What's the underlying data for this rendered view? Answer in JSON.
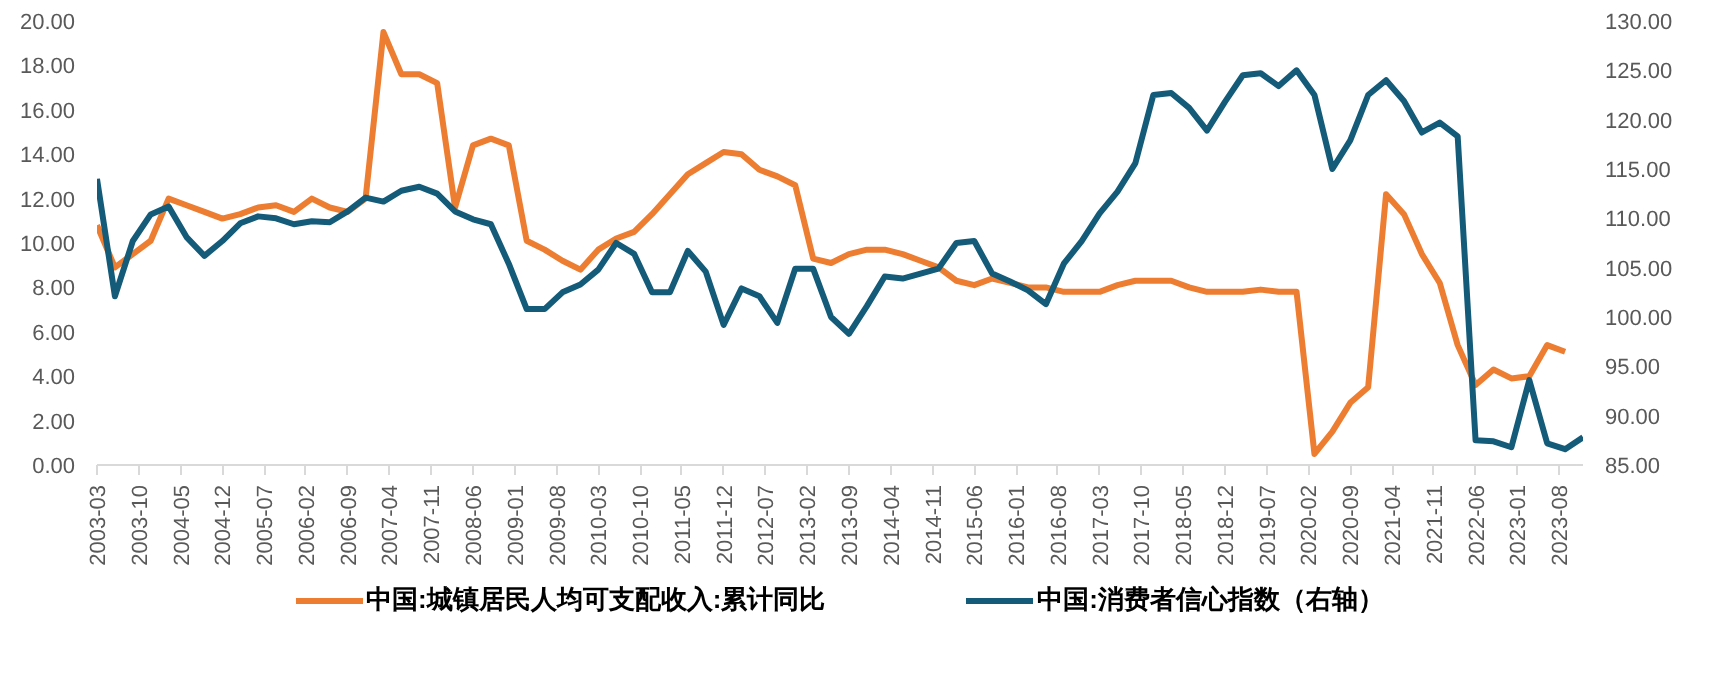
{
  "chart_data": {
    "type": "line",
    "x": [
      "2003-03",
      "2003-06",
      "2003-09",
      "2003-12",
      "2004-03",
      "2004-06",
      "2004-09",
      "2004-12",
      "2005-03",
      "2005-06",
      "2005-09",
      "2005-12",
      "2006-03",
      "2006-06",
      "2006-09",
      "2006-12",
      "2007-03",
      "2007-06",
      "2007-09",
      "2007-12",
      "2008-03",
      "2008-06",
      "2008-09",
      "2008-12",
      "2009-03",
      "2009-06",
      "2009-09",
      "2009-12",
      "2010-03",
      "2010-06",
      "2010-09",
      "2010-12",
      "2011-03",
      "2011-06",
      "2011-09",
      "2011-12",
      "2012-03",
      "2012-06",
      "2012-09",
      "2012-12",
      "2013-03",
      "2013-06",
      "2013-09",
      "2013-12",
      "2014-03",
      "2014-06",
      "2014-09",
      "2014-12",
      "2015-03",
      "2015-06",
      "2015-09",
      "2015-12",
      "2016-03",
      "2016-06",
      "2016-09",
      "2016-12",
      "2017-03",
      "2017-06",
      "2017-09",
      "2017-12",
      "2018-03",
      "2018-06",
      "2018-09",
      "2018-12",
      "2019-03",
      "2019-06",
      "2019-09",
      "2019-12",
      "2020-03",
      "2020-06",
      "2020-09",
      "2020-12",
      "2021-03",
      "2021-06",
      "2021-09",
      "2021-12",
      "2022-03",
      "2022-06",
      "2022-09",
      "2022-12",
      "2023-03",
      "2023-06",
      "2023-09",
      "2023-12"
    ],
    "series": [
      {
        "name": "中国:城镇居民人均可支配收入:累计同比",
        "color": "#ed7d31",
        "values": [
          10.8,
          8.9,
          9.5,
          10.1,
          12.0,
          11.7,
          11.4,
          11.1,
          11.3,
          11.6,
          11.7,
          11.4,
          12.0,
          11.6,
          11.4,
          12.0,
          19.5,
          17.6,
          17.6,
          17.2,
          11.6,
          14.4,
          14.7,
          14.4,
          10.1,
          9.7,
          9.2,
          8.8,
          9.7,
          10.2,
          10.5,
          11.3,
          12.2,
          13.1,
          13.6,
          14.1,
          14.0,
          13.3,
          13.0,
          12.6,
          9.3,
          9.1,
          9.5,
          9.7,
          9.7,
          9.5,
          9.2,
          8.9,
          8.3,
          8.1,
          8.4,
          8.2,
          8.0,
          8.0,
          7.8,
          7.8,
          7.8,
          8.1,
          8.3,
          8.3,
          8.3,
          8.0,
          7.8,
          7.8,
          7.8,
          7.9,
          7.8,
          7.8,
          0.5,
          1.5,
          2.8,
          3.5,
          12.2,
          11.3,
          9.5,
          8.2,
          5.4,
          3.6,
          4.3,
          3.9,
          4.0,
          5.4,
          5.1,
          null
        ]
      },
      {
        "name": "中国:消费者信心指数（右轴）",
        "color": "#135b79",
        "axis": "y2",
        "values": [
          114.0,
          102.1,
          107.7,
          110.4,
          111.2,
          108.1,
          106.2,
          107.7,
          109.5,
          110.2,
          110.0,
          109.4,
          109.7,
          109.6,
          110.7,
          112.1,
          111.7,
          112.8,
          113.2,
          112.5,
          110.7,
          109.9,
          109.4,
          105.4,
          100.8,
          100.8,
          102.5,
          103.3,
          104.8,
          107.5,
          106.4,
          102.5,
          102.5,
          106.7,
          104.6,
          99.2,
          102.9,
          102.1,
          99.4,
          104.9,
          104.9,
          100.0,
          98.3,
          101.1,
          104.1,
          103.9,
          104.4,
          104.9,
          107.5,
          107.7,
          104.4,
          103.6,
          102.7,
          101.3,
          105.4,
          107.7,
          110.5,
          112.7,
          115.6,
          122.5,
          122.7,
          121.2,
          118.9,
          121.8,
          124.5,
          124.7,
          123.4,
          125.0,
          122.5,
          115.0,
          117.9,
          122.5,
          124.0,
          121.9,
          118.7,
          119.7,
          118.3,
          87.5,
          87.4,
          86.8,
          93.6,
          87.2,
          86.6,
          87.8
        ]
      }
    ],
    "xlim": [
      "2003-03",
      "2023-12"
    ],
    "xticks": [
      "2003-03",
      "2003-10",
      "2004-05",
      "2004-12",
      "2005-07",
      "2006-02",
      "2006-09",
      "2007-04",
      "2007-11",
      "2008-06",
      "2009-01",
      "2009-08",
      "2010-03",
      "2010-10",
      "2011-05",
      "2011-12",
      "2012-07",
      "2013-02",
      "2013-09",
      "2014-04",
      "2014-11",
      "2015-06",
      "2016-01",
      "2016-08",
      "2017-03",
      "2017-10",
      "2018-05",
      "2018-12",
      "2019-07",
      "2020-02",
      "2020-09",
      "2021-04",
      "2021-11",
      "2022-06",
      "2023-01",
      "2023-08"
    ],
    "ylim": [
      0,
      20
    ],
    "yticks": [
      {
        "value": 0,
        "label": "0.00"
      },
      {
        "value": 2,
        "label": "2.00"
      },
      {
        "value": 4,
        "label": "4.00"
      },
      {
        "value": 6,
        "label": "6.00"
      },
      {
        "value": 8,
        "label": "8.00"
      },
      {
        "value": 10,
        "label": "10.00"
      },
      {
        "value": 12,
        "label": "12.00"
      },
      {
        "value": 14,
        "label": "14.00"
      },
      {
        "value": 16,
        "label": "16.00"
      },
      {
        "value": 18,
        "label": "18.00"
      },
      {
        "value": 20,
        "label": "20.00"
      }
    ],
    "y2lim": [
      85,
      130
    ],
    "y2ticks": [
      {
        "value": 85,
        "label": "85.00"
      },
      {
        "value": 90,
        "label": "90.00"
      },
      {
        "value": 95,
        "label": "95.00"
      },
      {
        "value": 100,
        "label": "100.00"
      },
      {
        "value": 105,
        "label": "105.00"
      },
      {
        "value": 110,
        "label": "110.00"
      },
      {
        "value": 115,
        "label": "115.00"
      },
      {
        "value": 120,
        "label": "120.00"
      },
      {
        "value": 125,
        "label": "125.00"
      },
      {
        "value": 130,
        "label": "130.00"
      }
    ],
    "legend": "bottom",
    "grid": false,
    "marker": "none",
    "line_style": "solid"
  }
}
